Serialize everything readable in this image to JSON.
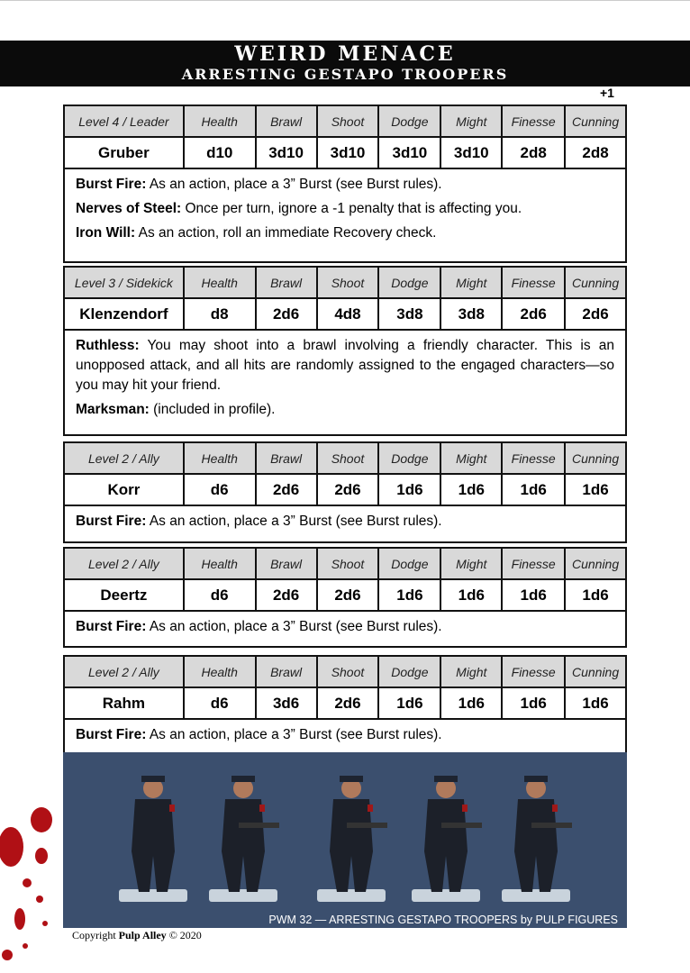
{
  "header": {
    "title": "WEIRD MENACE",
    "subtitle": "ARRESTING GESTAPO TROOPERS",
    "modifier": "+1"
  },
  "stat_headers": [
    "Health",
    "Brawl",
    "Shoot",
    "Dodge",
    "Might",
    "Finesse",
    "Cunning"
  ],
  "characters": [
    {
      "level": "Level 4 / Leader",
      "name": "Gruber",
      "stats": [
        "d10",
        "3d10",
        "3d10",
        "3d10",
        "3d10",
        "2d8",
        "2d8"
      ],
      "abilities": [
        {
          "name": "Burst Fire:",
          "text": " As an action, place a 3” Burst (see Burst rules)."
        },
        {
          "name": "Nerves of Steel:",
          "text": " Once per turn, ignore a -1 penalty that is affecting you."
        },
        {
          "name": "Iron Will:",
          "text": " As an action, roll an immediate Recovery check."
        }
      ]
    },
    {
      "level": "Level 3 / Sidekick",
      "name": "Klenzendorf",
      "stats": [
        "d8",
        "2d6",
        "4d8",
        "3d8",
        "3d8",
        "2d6",
        "2d6"
      ],
      "abilities": [
        {
          "name": "Ruthless:",
          "text": " You may shoot into a brawl involving a friendly character. This is an unopposed attack, and all hits are randomly assigned to the engaged characters—so you may hit your friend."
        },
        {
          "name": "Marksman:",
          "text": " (included in profile)."
        }
      ]
    },
    {
      "level": "Level 2 / Ally",
      "name": "Korr",
      "stats": [
        "d6",
        "2d6",
        "2d6",
        "1d6",
        "1d6",
        "1d6",
        "1d6"
      ],
      "abilities": [
        {
          "name": "Burst Fire:",
          "text": " As an action, place a 3” Burst (see Burst rules)."
        }
      ]
    },
    {
      "level": "Level 2 / Ally",
      "name": "Deertz",
      "stats": [
        "d6",
        "2d6",
        "2d6",
        "1d6",
        "1d6",
        "1d6",
        "1d6"
      ],
      "abilities": [
        {
          "name": "Burst Fire:",
          "text": " As an action, place a 3” Burst (see Burst rules)."
        }
      ]
    },
    {
      "level": "Level 2 / Ally",
      "name": "Rahm",
      "stats": [
        "d6",
        "3d6",
        "2d6",
        "1d6",
        "1d6",
        "1d6",
        "1d6"
      ],
      "abilities": [
        {
          "name": "Burst Fire:",
          "text": " As an action, place a 3” Burst (see Burst rules)."
        }
      ]
    }
  ],
  "photo": {
    "caption": "PWM 32 — ARRESTING GESTAPO TROOPERS by PULP FIGURES",
    "background": "#3b4f6e"
  },
  "footer": {
    "copyright_prefix": "Copyright ",
    "brand": "Pulp Alley",
    "copyright_suffix": " © 2020"
  }
}
